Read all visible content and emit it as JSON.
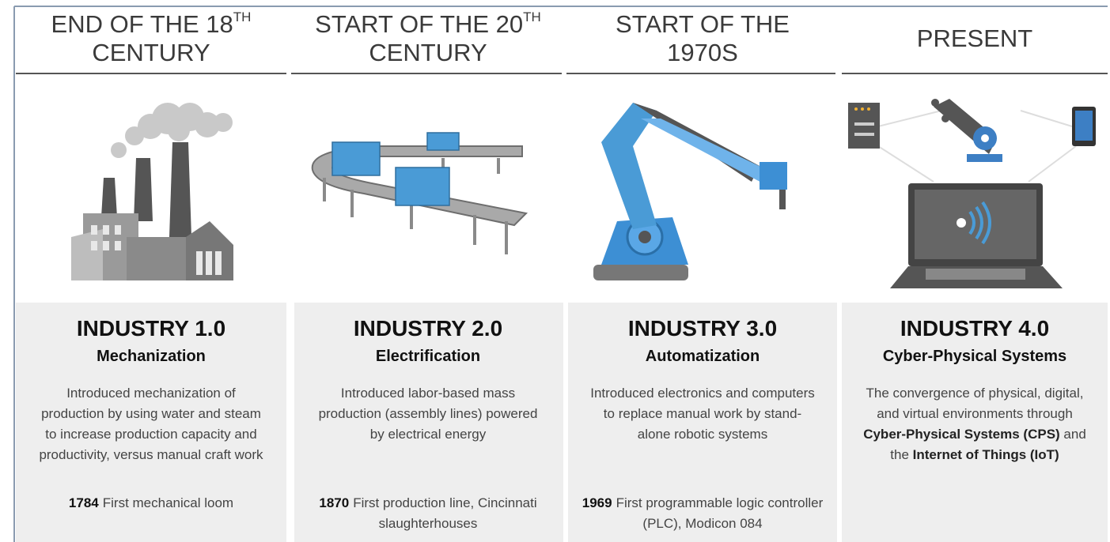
{
  "columns": [
    {
      "era_lines": [
        "END OF THE 18",
        "CENTURY"
      ],
      "era_sup": "TH",
      "title": "INDUSTRY 1.0",
      "subtitle": "Mechanization",
      "description": [
        {
          "text": "Introduced mechanization of production by using water and steam to increase production capacity and productivity, versus manual craft work",
          "bold": false
        }
      ],
      "milestone": {
        "year": "1784",
        "text": "First mechanical loom"
      }
    },
    {
      "era_lines": [
        "START OF THE 20",
        "CENTURY"
      ],
      "era_sup": "TH",
      "title": "INDUSTRY 2.0",
      "subtitle": "Electrification",
      "description": [
        {
          "text": "Introduced labor-based mass production (assembly lines) powered by electrical energy",
          "bold": false
        }
      ],
      "milestone": {
        "year": "1870",
        "text": "First production line, Cincinnati slaughterhouses"
      }
    },
    {
      "era_lines": [
        "START OF THE",
        "1970S"
      ],
      "title": "INDUSTRY 3.0",
      "subtitle": "Automatization",
      "description": [
        {
          "text": "Introduced electronics and computers to replace manual work by stand-alone robotic systems",
          "bold": false
        }
      ],
      "milestone": {
        "year": "1969",
        "text": "First programmable logic controller (PLC), Modicon 084"
      }
    },
    {
      "era_lines": [
        "PRESENT"
      ],
      "title": "INDUSTRY 4.0",
      "subtitle": "Cyber-Physical Systems",
      "description": [
        {
          "text": "The convergence of physical, digital, and virtual environments through ",
          "bold": false
        },
        {
          "text": "Cyber-Physical Systems (CPS)",
          "bold": true
        },
        {
          "text": " and the ",
          "bold": false
        },
        {
          "text": "Internet of Things (IoT)",
          "bold": true
        }
      ]
    }
  ]
}
